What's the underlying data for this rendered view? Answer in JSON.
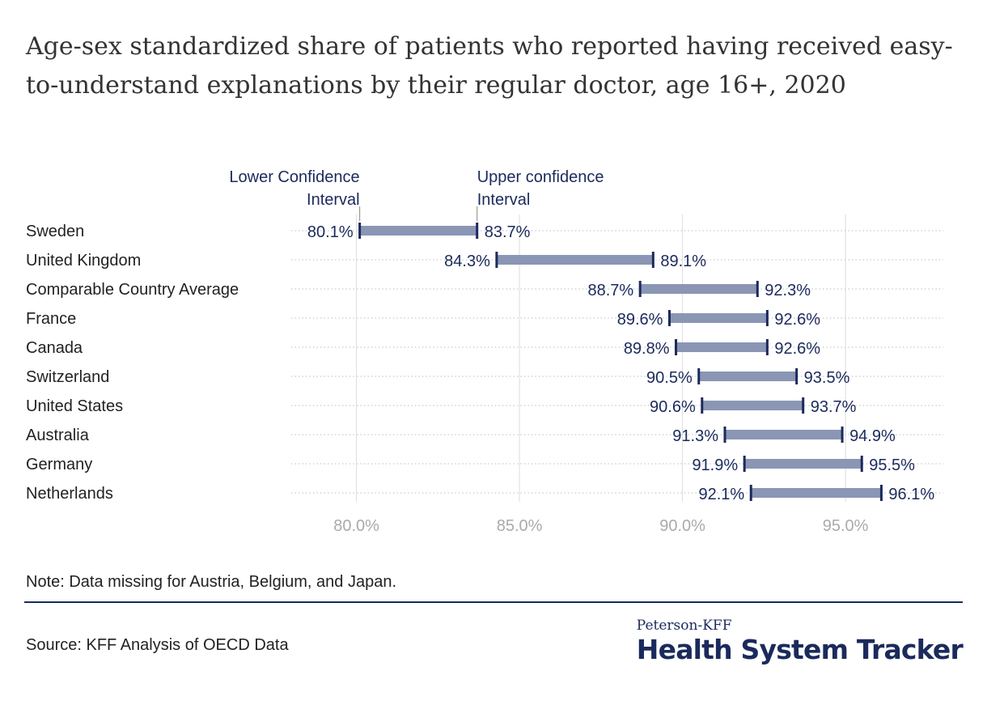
{
  "title": "Age-sex standardized share of patients who reported having received easy-to-understand explanations by their regular doctor, age 16+, 2020",
  "note": "Note: Data missing for Austria, Belgium, and Japan.",
  "source": "Source: KFF Analysis of OECD Data",
  "logo": {
    "top": "Peterson-KFF",
    "main": "Health System Tracker"
  },
  "colors": {
    "accent": "#1b2a5c",
    "bar": "#8b96b5",
    "grid": "#dddddd",
    "tick": "#aaaaaa"
  },
  "chart_data": {
    "type": "range-bar",
    "xlim": [
      78,
      98
    ],
    "xticks": [
      80,
      85,
      90,
      95
    ],
    "xtick_labels": [
      "80.0%",
      "85.0%",
      "90.0%",
      "95.0%"
    ],
    "grid": true,
    "annotations": {
      "lower": "Lower Confidence Interval",
      "upper": "Upper confidence Interval"
    },
    "categories": [
      "Sweden",
      "United Kingdom",
      "Comparable Country Average",
      "France",
      "Canada",
      "Switzerland",
      "United States",
      "Australia",
      "Germany",
      "Netherlands"
    ],
    "series": [
      {
        "name": "Lower Confidence Interval",
        "values": [
          80.1,
          84.3,
          88.7,
          89.6,
          89.8,
          90.5,
          90.6,
          91.3,
          91.9,
          92.1
        ],
        "labels": [
          "80.1%",
          "84.3%",
          "88.7%",
          "89.6%",
          "89.8%",
          "90.5%",
          "90.6%",
          "91.3%",
          "91.9%",
          "92.1%"
        ]
      },
      {
        "name": "Upper confidence Interval",
        "values": [
          83.7,
          89.1,
          92.3,
          92.6,
          92.6,
          93.5,
          93.7,
          94.9,
          95.5,
          96.1
        ],
        "labels": [
          "83.7%",
          "89.1%",
          "92.3%",
          "92.6%",
          "92.6%",
          "93.5%",
          "93.7%",
          "94.9%",
          "95.5%",
          "96.1%"
        ]
      }
    ]
  }
}
